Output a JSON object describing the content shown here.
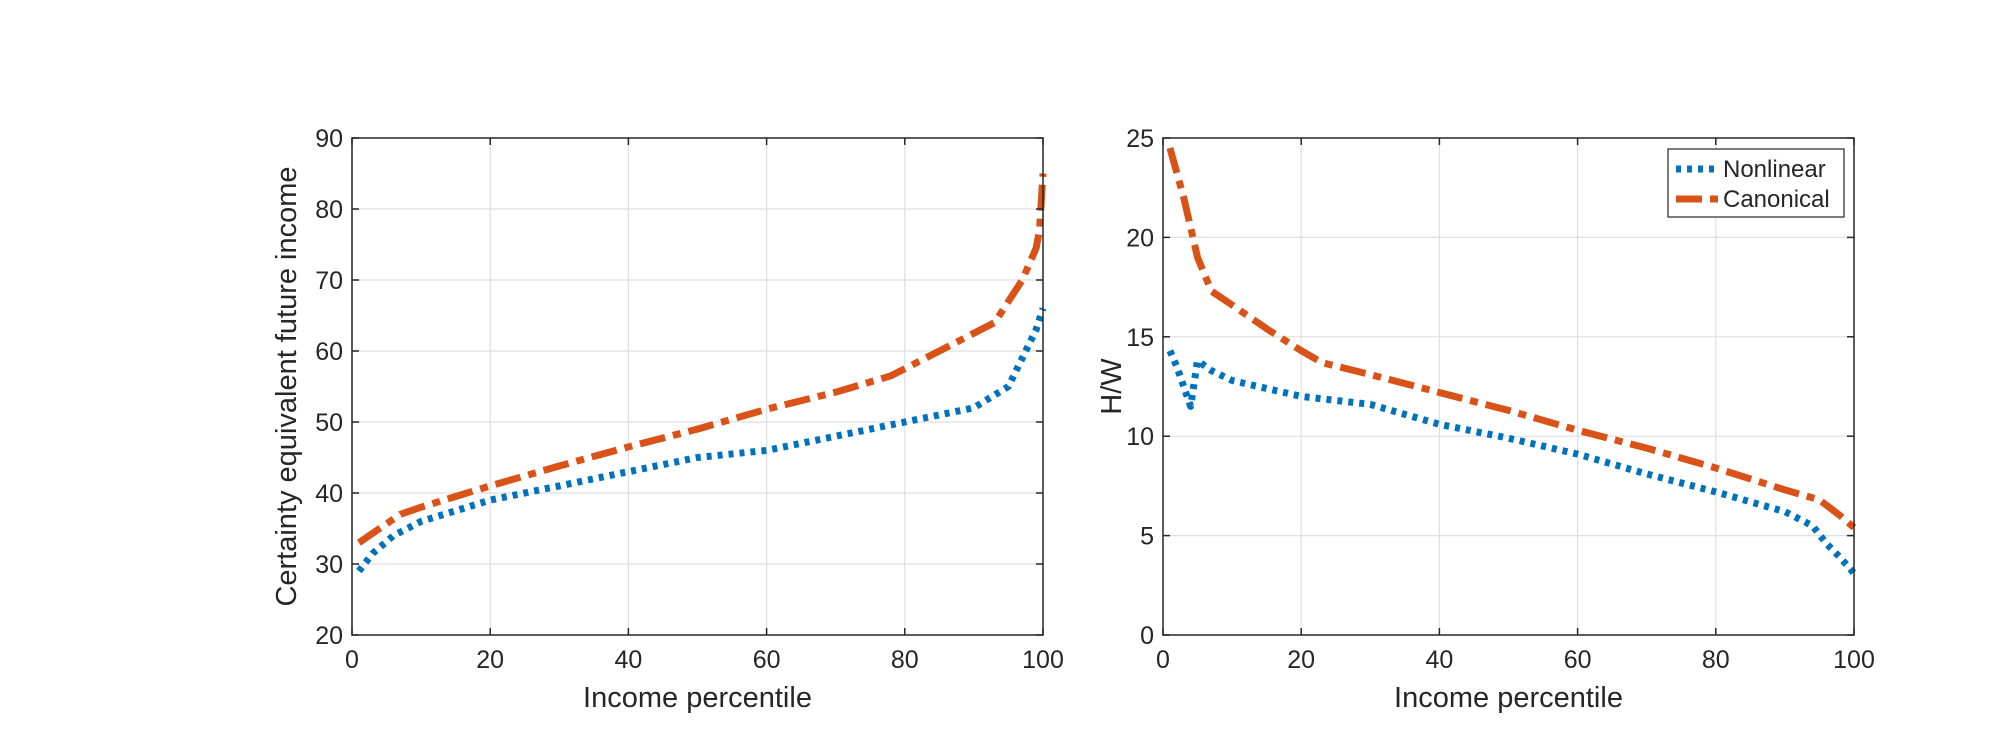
{
  "colors": {
    "nonlinear": "#0072BD",
    "canonical": "#D95319",
    "axis": "#262626",
    "grid": "#DFDFDF"
  },
  "chart_data": [
    {
      "type": "line",
      "xlabel": "Income percentile",
      "ylabel": "Certainty equivalent future income",
      "xlim": [
        0,
        100
      ],
      "ylim": [
        20,
        90
      ],
      "xticks": [
        0,
        20,
        40,
        60,
        80,
        100
      ],
      "yticks": [
        20,
        30,
        40,
        50,
        60,
        70,
        80,
        90
      ],
      "grid": true,
      "legend": "none",
      "series": [
        {
          "name": "Nonlinear",
          "style": "dotted",
          "x": [
            1,
            3,
            6,
            10,
            15,
            20,
            30,
            40,
            50,
            60,
            70,
            80,
            90,
            95,
            97,
            99,
            100
          ],
          "y": [
            29,
            31.5,
            34,
            36,
            37.5,
            39,
            41,
            43,
            45,
            46,
            48,
            50,
            52,
            55,
            59,
            63,
            66
          ]
        },
        {
          "name": "Canonical",
          "style": "dashdot",
          "x": [
            1,
            4,
            7,
            10,
            15,
            20,
            30,
            40,
            50,
            60,
            70,
            78,
            85,
            93,
            97,
            99,
            99.5,
            100
          ],
          "y": [
            33,
            35,
            37,
            38,
            39.5,
            41,
            43.8,
            46.5,
            49,
            51.8,
            54.2,
            56.5,
            60,
            64,
            70,
            74.5,
            77,
            85
          ]
        }
      ]
    },
    {
      "type": "line",
      "xlabel": "Income percentile",
      "ylabel": "H/W",
      "xlim": [
        0,
        100
      ],
      "ylim": [
        0,
        25
      ],
      "xticks": [
        0,
        20,
        40,
        60,
        80,
        100
      ],
      "yticks": [
        0,
        5,
        10,
        15,
        20,
        25
      ],
      "grid": true,
      "legend": "top-right",
      "series": [
        {
          "name": "Nonlinear",
          "style": "dotted",
          "x": [
            1,
            2,
            4,
            5,
            7,
            10,
            15,
            20,
            30,
            40,
            50,
            60,
            70,
            80,
            90,
            94,
            96,
            98,
            100
          ],
          "y": [
            14.3,
            13.5,
            11.5,
            13.8,
            13.3,
            12.8,
            12.4,
            12,
            11.6,
            10.6,
            9.9,
            9.1,
            8.1,
            7.2,
            6.2,
            5.5,
            4.6,
            3.9,
            3.1
          ]
        },
        {
          "name": "Canonical",
          "style": "dashdot",
          "x": [
            1,
            3,
            5,
            7,
            10,
            15,
            20,
            23,
            30,
            40,
            50,
            60,
            70,
            80,
            90,
            95,
            98,
            100
          ],
          "y": [
            24.5,
            22,
            19,
            17.3,
            16.6,
            15.4,
            14.3,
            13.7,
            13.1,
            12.2,
            11.3,
            10.3,
            9.4,
            8.4,
            7.3,
            6.8,
            6,
            5.4
          ]
        }
      ]
    }
  ]
}
